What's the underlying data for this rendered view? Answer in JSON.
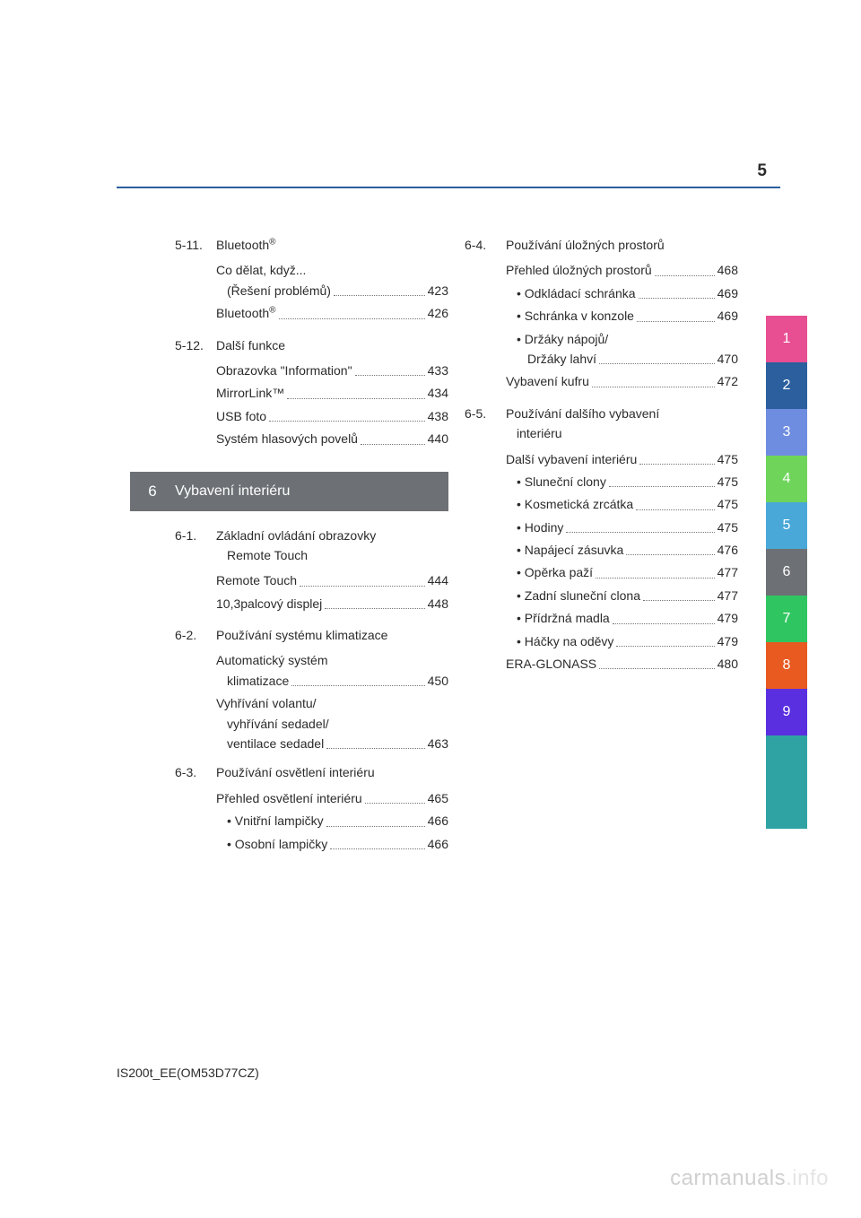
{
  "page_number": "5",
  "footer_code": "IS200t_EE(OM53D77CZ)",
  "watermark": {
    "left": "carmanuals",
    "right": ".info"
  },
  "chapter_band": {
    "number": "6",
    "title": "Vybavení interiéru",
    "bg": "#6d7175",
    "fg": "#ffffff"
  },
  "tabs": [
    {
      "label": "1",
      "bg": "#e84f93"
    },
    {
      "label": "2",
      "bg": "#2b5f9e"
    },
    {
      "label": "3",
      "bg": "#6f8de0"
    },
    {
      "label": "4",
      "bg": "#6ed55a"
    },
    {
      "label": "5",
      "bg": "#4aa8d8"
    },
    {
      "label": "6",
      "bg": "#6d7175"
    },
    {
      "label": "7",
      "bg": "#2fc661"
    },
    {
      "label": "8",
      "bg": "#e85a1f"
    },
    {
      "label": "9",
      "bg": "#5a2fe0"
    },
    {
      "label": "",
      "bg": "#2fa3a3"
    },
    {
      "label": "",
      "bg": "#2fa3a3"
    }
  ],
  "col_left": {
    "sections": [
      {
        "num": "5-11.",
        "title": "Bluetooth",
        "title_sup": "®",
        "entries": [
          {
            "type": "multi",
            "lines": [
              "Co dělat, když..."
            ],
            "last_text": "(Řešení problémů)",
            "last_indent": true,
            "page": "423"
          },
          {
            "type": "single",
            "text": "Bluetooth",
            "sup": "®",
            "page": "426"
          }
        ]
      },
      {
        "num": "5-12.",
        "title": "Další funkce",
        "entries": [
          {
            "type": "single",
            "text": "Obrazovka \"Information\"",
            "page": "433"
          },
          {
            "type": "single",
            "text": "MirrorLink™",
            "page": "434"
          },
          {
            "type": "single",
            "text": "USB foto",
            "page": "438"
          },
          {
            "type": "single",
            "text": "Systém hlasových povelů",
            "page": "440"
          }
        ]
      }
    ],
    "after_band_sections": [
      {
        "num": "6-1.",
        "title_lines": [
          "Základní ovládání obrazovky",
          "Remote Touch"
        ],
        "entries": [
          {
            "type": "single",
            "text": "Remote Touch",
            "page": "444"
          },
          {
            "type": "single",
            "text": "10,3palcový displej",
            "page": "448"
          }
        ]
      },
      {
        "num": "6-2.",
        "title": "Používání systému klimatizace",
        "entries": [
          {
            "type": "multi",
            "lines": [
              "Automatický systém"
            ],
            "last_text": "klimatizace",
            "last_indent": true,
            "page": "450"
          },
          {
            "type": "multi",
            "lines": [
              "Vyhřívání volantu/",
              "vyhřívání sedadel/"
            ],
            "last_text": "ventilace sedadel",
            "last_indent": true,
            "page": "463"
          }
        ]
      },
      {
        "num": "6-3.",
        "title": "Používání osvětlení interiéru",
        "entries": [
          {
            "type": "single",
            "text": "Přehled osvětlení interiéru",
            "page": "465"
          },
          {
            "type": "single",
            "text": "• Vnitřní lampičky",
            "indent": true,
            "page": "466"
          },
          {
            "type": "single",
            "text": "• Osobní lampičky",
            "indent": true,
            "page": "466"
          }
        ]
      }
    ]
  },
  "col_right": {
    "sections": [
      {
        "num": "6-4.",
        "title": "Používání úložných prostorů",
        "entries": [
          {
            "type": "single",
            "text": "Přehled úložných prostorů",
            "page": "468"
          },
          {
            "type": "single",
            "text": "• Odkládací schránka",
            "indent": true,
            "page": "469"
          },
          {
            "type": "single",
            "text": "• Schránka v konzole",
            "indent": true,
            "page": "469"
          },
          {
            "type": "multi",
            "lines": [
              "• Držáky nápojů/"
            ],
            "indent": true,
            "last_text": "Držáky lahví",
            "last_indent": true,
            "page": "470"
          },
          {
            "type": "single",
            "text": "Vybavení kufru",
            "page": "472"
          }
        ]
      },
      {
        "num": "6-5.",
        "title_lines": [
          "Používání dalšího vybavení",
          "interiéru"
        ],
        "entries": [
          {
            "type": "single",
            "text": "Další vybavení interiéru",
            "page": "475"
          },
          {
            "type": "single",
            "text": "• Sluneční clony",
            "indent": true,
            "page": "475"
          },
          {
            "type": "single",
            "text": "• Kosmetická zrcátka",
            "indent": true,
            "page": "475"
          },
          {
            "type": "single",
            "text": "• Hodiny",
            "indent": true,
            "page": "475"
          },
          {
            "type": "single",
            "text": "• Napájecí zásuvka",
            "indent": true,
            "page": "476"
          },
          {
            "type": "single",
            "text": "• Opěrka paží",
            "indent": true,
            "page": "477"
          },
          {
            "type": "single",
            "text": "• Zadní sluneční clona",
            "indent": true,
            "page": "477"
          },
          {
            "type": "single",
            "text": "• Přídržná madla",
            "indent": true,
            "page": "479"
          },
          {
            "type": "single",
            "text": "• Háčky na oděvy",
            "indent": true,
            "page": "479"
          },
          {
            "type": "single",
            "text": "ERA-GLONASS",
            "page": "480"
          }
        ]
      }
    ]
  }
}
